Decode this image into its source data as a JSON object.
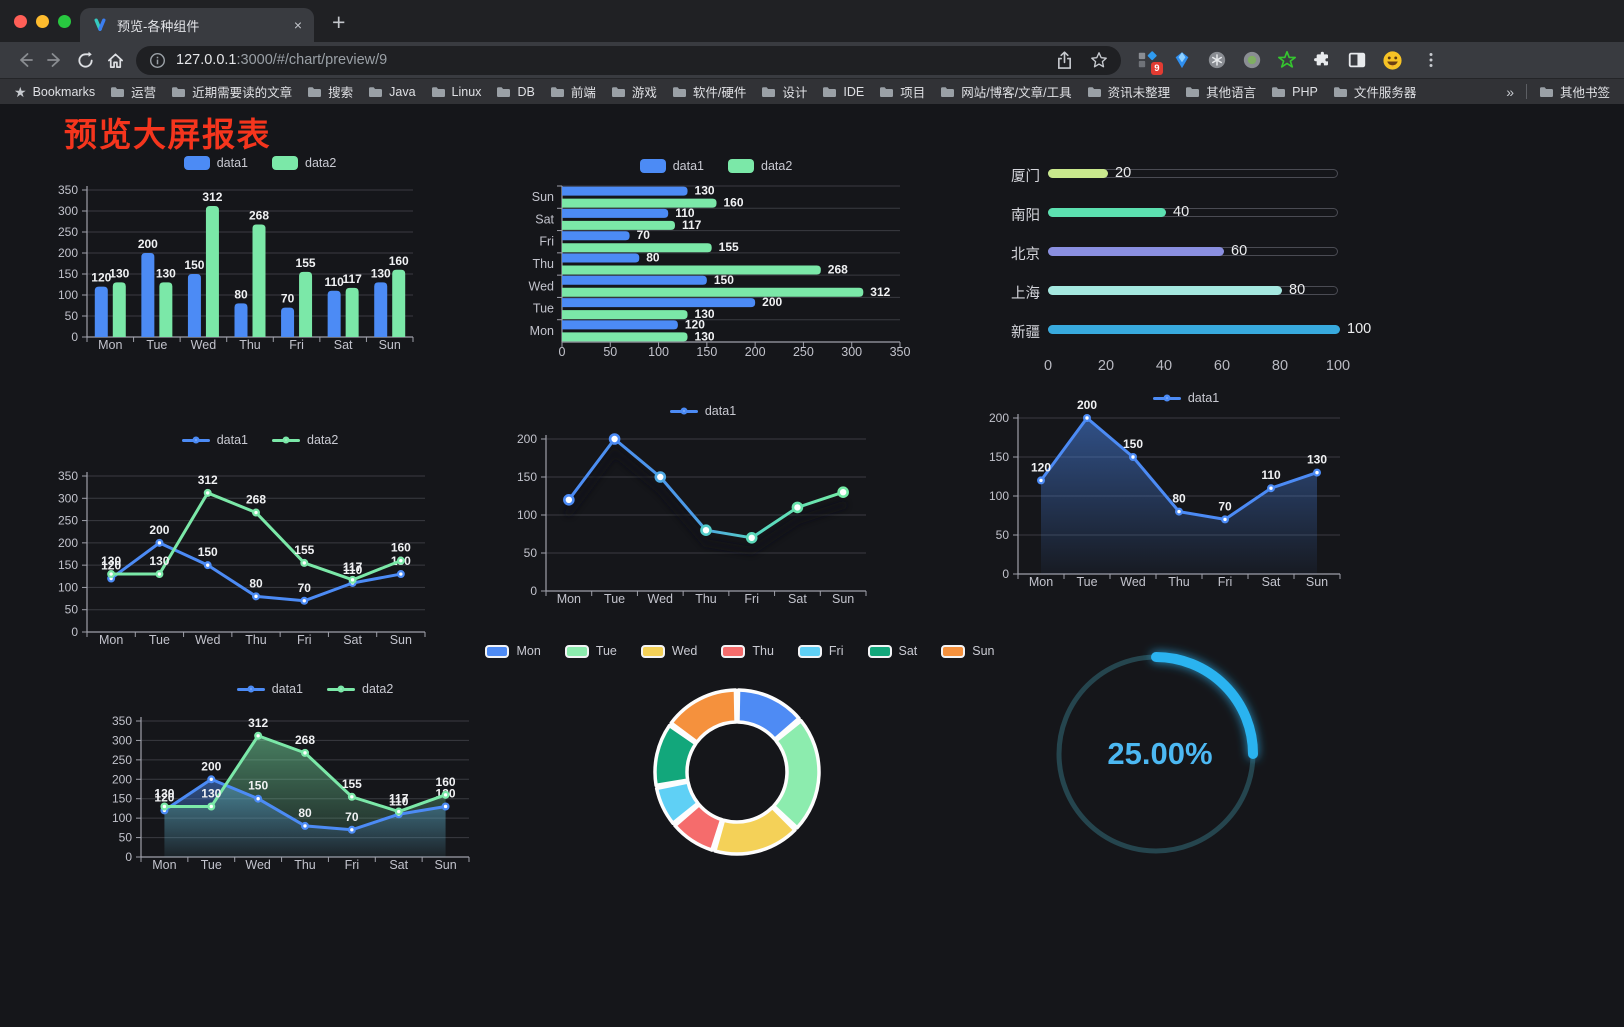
{
  "browser": {
    "tab_title": "预览-各种组件",
    "tab_close": "×",
    "new_tab": "+",
    "url_host": "127.0.0.1",
    "url_rest": ":3000/#/chart/preview/9",
    "extension_badge": "9"
  },
  "bookmarks": {
    "label": "Bookmarks",
    "folders": [
      "运营",
      "近期需要读的文章",
      "搜索",
      "Java",
      "Linux",
      "DB",
      "前端",
      "游戏",
      "软件/硬件",
      "设计",
      "IDE",
      "项目",
      "网站/博客/文章/工具",
      "资讯未整理",
      "其他语言",
      "PHP",
      "文件服务器"
    ],
    "overflow": "»",
    "other": "其他书签"
  },
  "page": {
    "title": "预览大屏报表"
  },
  "colors": {
    "data1_blue": "#4C8BF5",
    "data2_green": "#7BE8A8",
    "title_red": "#F5351D",
    "gauge_blue": "#2BB3F0"
  },
  "chart_data": [
    {
      "id": "bar-grouped",
      "type": "bar",
      "categories": [
        "Mon",
        "Tue",
        "Wed",
        "Thu",
        "Fri",
        "Sat",
        "Sun"
      ],
      "series": [
        {
          "name": "data1",
          "color": "#4C8BF5",
          "values": [
            120,
            200,
            150,
            80,
            70,
            110,
            130
          ]
        },
        {
          "name": "data2",
          "color": "#7BE8A8",
          "values": [
            130,
            130,
            312,
            268,
            155,
            117,
            160
          ]
        }
      ],
      "ylim": [
        0,
        350
      ],
      "ystep": 50,
      "labels": true,
      "legend_position": "top",
      "grid": true
    },
    {
      "id": "bar-horizontal",
      "type": "bar-horizontal",
      "categories": [
        "Sun",
        "Sat",
        "Fri",
        "Thu",
        "Wed",
        "Tue",
        "Mon"
      ],
      "series": [
        {
          "name": "data1",
          "color": "#4C8BF5",
          "values": [
            130,
            110,
            70,
            80,
            150,
            200,
            120
          ]
        },
        {
          "name": "data2",
          "color": "#7BE8A8",
          "values": [
            160,
            117,
            155,
            268,
            312,
            130,
            130
          ]
        }
      ],
      "xlim": [
        0,
        350
      ],
      "xstep": 50,
      "labels": true,
      "legend_position": "top"
    },
    {
      "id": "progress",
      "type": "progress",
      "rows": [
        {
          "label": "厦门",
          "value": 20,
          "color": "#C9E88D"
        },
        {
          "label": "南阳",
          "value": 40,
          "color": "#5CE0B0"
        },
        {
          "label": "北京",
          "value": 60,
          "color": "#8A8FE0"
        },
        {
          "label": "上海",
          "value": 80,
          "color": "#A5E8E0"
        },
        {
          "label": "新疆",
          "value": 100,
          "color": "#38AADE"
        }
      ],
      "xlim": [
        0,
        100
      ],
      "ticks": [
        0,
        20,
        40,
        60,
        80,
        100
      ]
    },
    {
      "id": "line-two",
      "type": "line",
      "categories": [
        "Mon",
        "Tue",
        "Wed",
        "Thu",
        "Fri",
        "Sat",
        "Sun"
      ],
      "series": [
        {
          "name": "data1",
          "color": "#4C8BF5",
          "values": [
            120,
            200,
            150,
            80,
            70,
            110,
            130
          ]
        },
        {
          "name": "data2",
          "color": "#7BE8A8",
          "values": [
            130,
            130,
            312,
            268,
            155,
            117,
            160
          ]
        }
      ],
      "ylim": [
        0,
        350
      ],
      "ystep": 50,
      "labels": true,
      "legend_position": "top",
      "grid": true
    },
    {
      "id": "line-grad",
      "type": "line-gradient",
      "categories": [
        "Mon",
        "Tue",
        "Wed",
        "Thu",
        "Fri",
        "Sat",
        "Sun"
      ],
      "series": [
        {
          "name": "data1",
          "gradient": [
            "#4C8BF5",
            "#4C9BE8",
            "#58D8C0",
            "#74EBA5"
          ],
          "point_colors": [
            "#4C8BF5",
            "#4C8BF5",
            "#4FA9E3",
            "#53CBC9",
            "#5BD8B8",
            "#68E3AC",
            "#74EBA5"
          ],
          "values": [
            120,
            200,
            150,
            80,
            70,
            110,
            130
          ]
        }
      ],
      "ylim": [
        0,
        200
      ],
      "ystep": 50,
      "labels": false,
      "legend_position": "top",
      "grid": true
    },
    {
      "id": "area-single",
      "type": "area",
      "categories": [
        "Mon",
        "Tue",
        "Wed",
        "Thu",
        "Fri",
        "Sat",
        "Sun"
      ],
      "series": [
        {
          "name": "data1",
          "color": "#4C8BF5",
          "values": [
            120,
            200,
            150,
            80,
            70,
            110,
            130
          ]
        }
      ],
      "ylim": [
        0,
        200
      ],
      "ystep": 50,
      "labels": true,
      "legend_position": "top",
      "grid": true
    },
    {
      "id": "line-area",
      "type": "line-area",
      "categories": [
        "Mon",
        "Tue",
        "Wed",
        "Thu",
        "Fri",
        "Sat",
        "Sun"
      ],
      "series": [
        {
          "name": "data1",
          "color": "#4C8BF5",
          "values": [
            120,
            200,
            150,
            80,
            70,
            110,
            130
          ]
        },
        {
          "name": "data2",
          "color": "#7BE8A8",
          "values": [
            130,
            130,
            312,
            268,
            155,
            117,
            160
          ]
        }
      ],
      "ylim": [
        0,
        350
      ],
      "ystep": 50,
      "labels": true,
      "legend_position": "top",
      "grid": true
    },
    {
      "id": "donut",
      "type": "donut",
      "legend": [
        "Mon",
        "Tue",
        "Wed",
        "Thu",
        "Fri",
        "Sat",
        "Sun"
      ],
      "values": [
        120,
        200,
        150,
        80,
        70,
        110,
        130
      ],
      "colors": [
        "#4E8BF4",
        "#8CECAE",
        "#F4D158",
        "#F56C6C",
        "#5FD0F5",
        "#12A77B",
        "#F5913D"
      ],
      "legend_position": "top"
    },
    {
      "id": "gauge",
      "type": "gauge",
      "value": 25,
      "label": "25.00%",
      "color": "#2BB3F0",
      "track_color": "#25454E"
    }
  ]
}
